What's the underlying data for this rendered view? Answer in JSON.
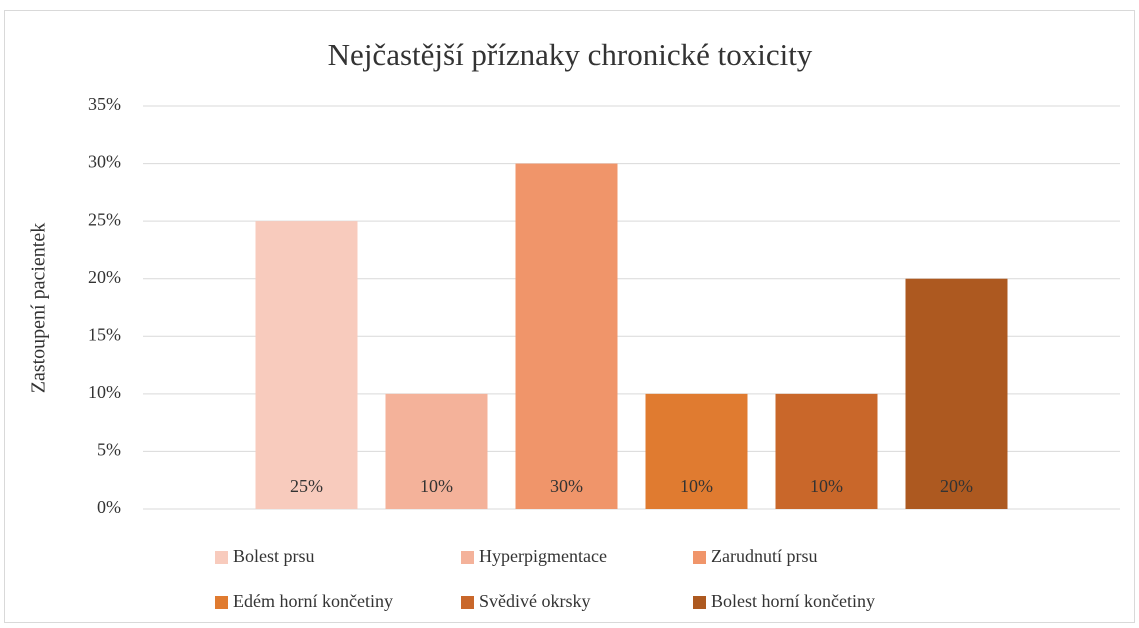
{
  "chart_data": {
    "type": "bar",
    "title": "Nejčastější příznaky chronické toxicity",
    "ylabel": "Zastoupení pacientek",
    "categories": [
      null
    ],
    "series": [
      {
        "name": "Bolest prsu",
        "color": "#f8cbbd",
        "values": [
          25
        ],
        "value_labels": [
          "25%"
        ]
      },
      {
        "name": "Hyperpigmentace",
        "color": "#f4b29a",
        "values": [
          10
        ],
        "value_labels": [
          "10%"
        ]
      },
      {
        "name": "Zarudnutí prsu",
        "color": "#f0956a",
        "values": [
          30
        ],
        "value_labels": [
          "30%"
        ]
      },
      {
        "name": "Edém horní končetiny",
        "color": "#e07b30",
        "values": [
          10
        ],
        "value_labels": [
          "10%"
        ]
      },
      {
        "name": "Svědivé okrsky",
        "color": "#c9672a",
        "values": [
          10
        ],
        "value_labels": [
          "10%"
        ]
      },
      {
        "name": "Bolest horní končetiny",
        "color": "#ad5920",
        "values": [
          20
        ],
        "value_labels": [
          "20%"
        ]
      }
    ],
    "ylim": [
      0,
      35
    ],
    "yticks": [
      {
        "value": 0,
        "label": "0%"
      },
      {
        "value": 5,
        "label": "5%"
      },
      {
        "value": 10,
        "label": "10%"
      },
      {
        "value": 15,
        "label": "15%"
      },
      {
        "value": 20,
        "label": "20%"
      },
      {
        "value": 25,
        "label": "25%"
      },
      {
        "value": 30,
        "label": "30%"
      },
      {
        "value": 35,
        "label": "35%"
      }
    ],
    "grid": true,
    "legend": "bottom"
  }
}
